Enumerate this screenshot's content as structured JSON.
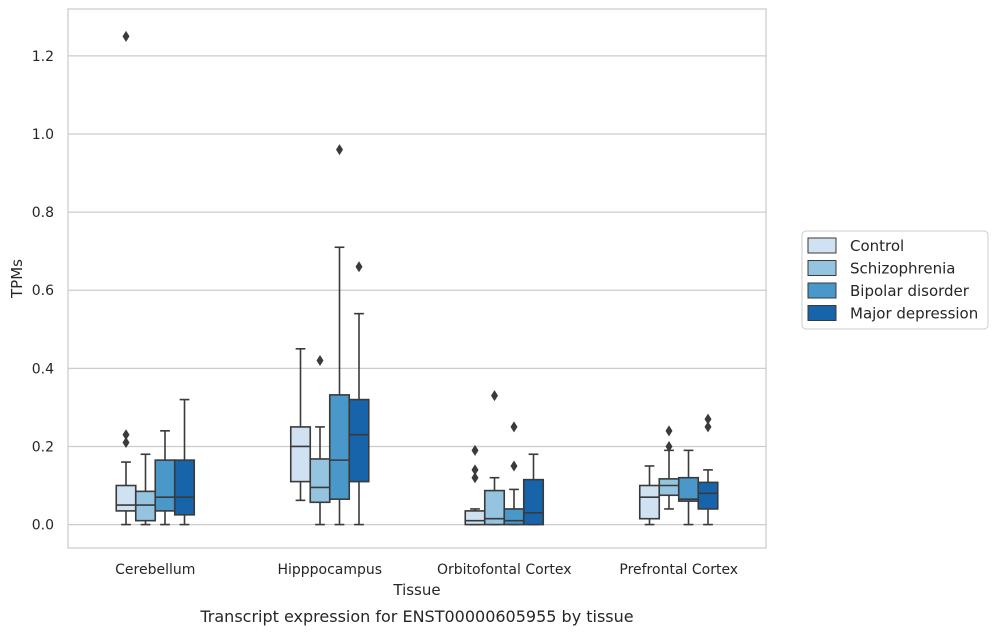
{
  "chart_data": {
    "type": "boxplot",
    "caption": "Transcript expression for ENST00000605955 by tissue",
    "xlabel": "Tissue",
    "ylabel": "TPMs",
    "ylim": [
      -0.06,
      1.32
    ],
    "yticks": [
      0.0,
      0.2,
      0.4,
      0.6,
      0.8,
      1.0,
      1.2
    ],
    "ytick_labels": [
      "0.0",
      "0.2",
      "0.4",
      "0.6",
      "0.8",
      "1.0",
      "1.2"
    ],
    "grid": "horizontal",
    "legend_position": "right",
    "categories": [
      "Cerebellum",
      "Hipppocampus",
      "Orbitofontal Cortex",
      "Prefrontal Cortex"
    ],
    "series": [
      {
        "name": "Control",
        "color": "#d0e1f2",
        "boxes": [
          {
            "whislo": 0.0,
            "q1": 0.035,
            "med": 0.05,
            "q3": 0.1,
            "whishi": 0.16,
            "fliers": [
              0.21,
              0.23,
              1.25
            ]
          },
          {
            "whislo": 0.062,
            "q1": 0.11,
            "med": 0.2,
            "q3": 0.25,
            "whishi": 0.45,
            "fliers": []
          },
          {
            "whislo": 0.0,
            "q1": 0.0,
            "med": 0.01,
            "q3": 0.035,
            "whishi": 0.04,
            "fliers": [
              0.12,
              0.14,
              0.19
            ]
          },
          {
            "whislo": 0.0,
            "q1": 0.015,
            "med": 0.07,
            "q3": 0.1,
            "whishi": 0.15,
            "fliers": []
          }
        ]
      },
      {
        "name": "Schizophrenia",
        "color": "#94c4df",
        "boxes": [
          {
            "whislo": 0.0,
            "q1": 0.01,
            "med": 0.05,
            "q3": 0.085,
            "whishi": 0.18,
            "fliers": []
          },
          {
            "whislo": 0.0,
            "q1": 0.057,
            "med": 0.095,
            "q3": 0.168,
            "whishi": 0.25,
            "fliers": [
              0.42
            ]
          },
          {
            "whislo": 0.0,
            "q1": 0.0,
            "med": 0.015,
            "q3": 0.087,
            "whishi": 0.12,
            "fliers": [
              0.33
            ]
          },
          {
            "whislo": 0.04,
            "q1": 0.075,
            "med": 0.1,
            "q3": 0.117,
            "whishi": 0.19,
            "fliers": [
              0.2,
              0.24
            ]
          }
        ]
      },
      {
        "name": "Bipolar disorder",
        "color": "#4a98c9",
        "boxes": [
          {
            "whislo": 0.0,
            "q1": 0.035,
            "med": 0.07,
            "q3": 0.165,
            "whishi": 0.24,
            "fliers": []
          },
          {
            "whislo": 0.0,
            "q1": 0.065,
            "med": 0.165,
            "q3": 0.332,
            "whishi": 0.71,
            "fliers": [
              0.96
            ]
          },
          {
            "whislo": 0.0,
            "q1": 0.0,
            "med": 0.01,
            "q3": 0.04,
            "whishi": 0.09,
            "fliers": [
              0.15,
              0.25
            ]
          },
          {
            "whislo": 0.0,
            "q1": 0.06,
            "med": 0.065,
            "q3": 0.12,
            "whishi": 0.19,
            "fliers": []
          }
        ]
      },
      {
        "name": "Major depression",
        "color": "#1764ab",
        "boxes": [
          {
            "whislo": 0.0,
            "q1": 0.025,
            "med": 0.07,
            "q3": 0.165,
            "whishi": 0.32,
            "fliers": []
          },
          {
            "whislo": 0.0,
            "q1": 0.11,
            "med": 0.23,
            "q3": 0.32,
            "whishi": 0.54,
            "fliers": [
              0.66
            ]
          },
          {
            "whislo": 0.0,
            "q1": 0.0,
            "med": 0.03,
            "q3": 0.115,
            "whishi": 0.18,
            "fliers": []
          },
          {
            "whislo": 0.0,
            "q1": 0.04,
            "med": 0.08,
            "q3": 0.108,
            "whishi": 0.14,
            "fliers": [
              0.25,
              0.27
            ]
          }
        ]
      }
    ]
  }
}
